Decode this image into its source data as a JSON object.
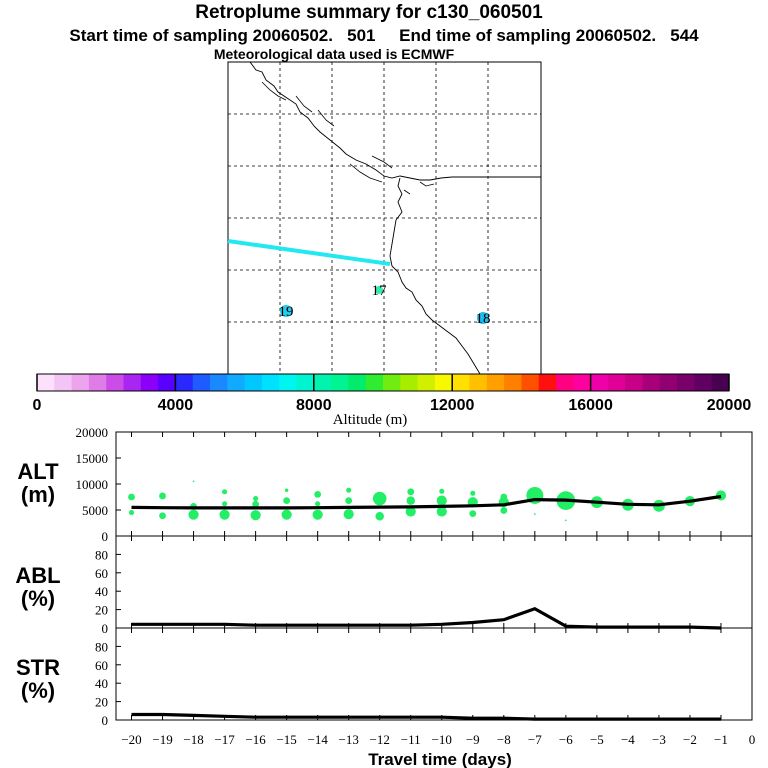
{
  "header": {
    "title": "Retroplume summary for c130_060501",
    "subtitle": "Start time of sampling 20060502.   501     End time of sampling 20060502.   544",
    "met_note": "Meteorological data used is ECMWF"
  },
  "colors": {
    "plume_track": "#22e8f0",
    "line": "#000000",
    "map_line": "#000000",
    "dot": "#22ee66"
  },
  "chart_data": [
    {
      "id": "map",
      "type": "map",
      "title": "",
      "markers": [
        {
          "label": "17",
          "lon_index": 0.48,
          "color": "#33eeaa"
        },
        {
          "label": "19",
          "lon_index": 0.18,
          "color": "#22ccee"
        },
        {
          "label": "18",
          "lon_index": 0.82,
          "color": "#22bbee"
        }
      ]
    },
    {
      "id": "colorbar",
      "type": "colorbar",
      "xlabel": "Altitude (m)",
      "tick_labels": [
        "0",
        "4000",
        "8000",
        "12000",
        "16000",
        "20000"
      ],
      "range": [
        0,
        20000
      ],
      "colors": [
        "#fce0fc",
        "#f4c4f4",
        "#eca4ec",
        "#e07ce8",
        "#cc4ce8",
        "#a826f0",
        "#8a00f8",
        "#5a00ff",
        "#2828ff",
        "#1e5cff",
        "#1a88ff",
        "#10aaff",
        "#00c8ff",
        "#00e0ff",
        "#00f4f0",
        "#00f4d0",
        "#00f4b0",
        "#00f490",
        "#00ec6c",
        "#30ec30",
        "#70ec10",
        "#a8ec00",
        "#d0f000",
        "#f8f800",
        "#ffe000",
        "#ffc000",
        "#ffa000",
        "#ff8000",
        "#ff5000",
        "#ff1010",
        "#ff0080",
        "#ff00a0",
        "#f000a8",
        "#e00098",
        "#c80088",
        "#a80078",
        "#900070",
        "#780068",
        "#600060",
        "#480050"
      ]
    },
    {
      "id": "alt",
      "type": "line",
      "ylabel": "ALT\n(m)",
      "ylabel_top": "ALT",
      "ylabel_bottom": "(m)",
      "ylim": [
        0,
        20000
      ],
      "yticks": [
        "0",
        "5000",
        "10000",
        "15000",
        "20000"
      ],
      "x": [
        -20,
        -19,
        -18,
        -17,
        -16,
        -15,
        -14,
        -13,
        -12,
        -11,
        -10,
        -9,
        -8,
        -7,
        -6,
        -5,
        -4,
        -3,
        -2,
        -1
      ],
      "values": [
        5500,
        5450,
        5400,
        5400,
        5400,
        5400,
        5450,
        5500,
        5550,
        5600,
        5700,
        5800,
        6000,
        7000,
        6900,
        6500,
        6100,
        6000,
        6700,
        7600
      ],
      "scatter": [
        {
          "x": -20,
          "y": 7500,
          "s": 4
        },
        {
          "x": -20,
          "y": 4500,
          "s": 3
        },
        {
          "x": -19,
          "y": 7700,
          "s": 4
        },
        {
          "x": -19,
          "y": 3900,
          "s": 4
        },
        {
          "x": -18,
          "y": 5700,
          "s": 4
        },
        {
          "x": -18,
          "y": 4100,
          "s": 6
        },
        {
          "x": -18,
          "y": 10500,
          "s": 1
        },
        {
          "x": -17,
          "y": 8500,
          "s": 3
        },
        {
          "x": -17,
          "y": 6200,
          "s": 3
        },
        {
          "x": -17,
          "y": 4100,
          "s": 6
        },
        {
          "x": -16,
          "y": 7200,
          "s": 3
        },
        {
          "x": -16,
          "y": 6100,
          "s": 4
        },
        {
          "x": -16,
          "y": 4000,
          "s": 6
        },
        {
          "x": -15,
          "y": 8800,
          "s": 2
        },
        {
          "x": -15,
          "y": 6800,
          "s": 4
        },
        {
          "x": -15,
          "y": 4100,
          "s": 6
        },
        {
          "x": -14,
          "y": 8000,
          "s": 4
        },
        {
          "x": -14,
          "y": 6200,
          "s": 3
        },
        {
          "x": -14,
          "y": 4100,
          "s": 6
        },
        {
          "x": -13,
          "y": 8800,
          "s": 3
        },
        {
          "x": -13,
          "y": 6800,
          "s": 4
        },
        {
          "x": -13,
          "y": 4200,
          "s": 6
        },
        {
          "x": -12,
          "y": 7200,
          "s": 8
        },
        {
          "x": -12,
          "y": 3800,
          "s": 5
        },
        {
          "x": -11,
          "y": 8500,
          "s": 4
        },
        {
          "x": -11,
          "y": 6800,
          "s": 5
        },
        {
          "x": -11,
          "y": 4700,
          "s": 6
        },
        {
          "x": -10,
          "y": 8600,
          "s": 3
        },
        {
          "x": -10,
          "y": 6800,
          "s": 6
        },
        {
          "x": -10,
          "y": 4700,
          "s": 6
        },
        {
          "x": -9,
          "y": 8200,
          "s": 3
        },
        {
          "x": -9,
          "y": 6500,
          "s": 6
        },
        {
          "x": -9,
          "y": 4300,
          "s": 4
        },
        {
          "x": -8,
          "y": 7500,
          "s": 4
        },
        {
          "x": -8,
          "y": 6500,
          "s": 6
        },
        {
          "x": -8,
          "y": 4900,
          "s": 4
        },
        {
          "x": -7,
          "y": 7800,
          "s": 10
        },
        {
          "x": -7,
          "y": 4200,
          "s": 1
        },
        {
          "x": -6,
          "y": 6800,
          "s": 11
        },
        {
          "x": -6,
          "y": 3000,
          "s": 1
        },
        {
          "x": -5,
          "y": 6500,
          "s": 7
        },
        {
          "x": -4,
          "y": 6000,
          "s": 7
        },
        {
          "x": -3,
          "y": 5800,
          "s": 7
        },
        {
          "x": -2,
          "y": 6700,
          "s": 6
        },
        {
          "x": -1,
          "y": 7800,
          "s": 6
        }
      ]
    },
    {
      "id": "abl",
      "type": "line",
      "ylabel_top": "ABL",
      "ylabel_bottom": "(%)",
      "ylim": [
        0,
        100
      ],
      "yticks": [
        "0",
        "20",
        "40",
        "60",
        "80"
      ],
      "x": [
        -20,
        -19,
        -18,
        -17,
        -16,
        -15,
        -14,
        -13,
        -12,
        -11,
        -10,
        -9,
        -8,
        -7,
        -6,
        -5,
        -4,
        -3,
        -2,
        -1
      ],
      "values": [
        4,
        4,
        4,
        4,
        3,
        3,
        3,
        3,
        3,
        3,
        4,
        6,
        9,
        21,
        2,
        1,
        1,
        1,
        1,
        0
      ]
    },
    {
      "id": "str",
      "type": "line",
      "ylabel_top": "STR",
      "ylabel_bottom": "(%)",
      "ylim": [
        0,
        100
      ],
      "yticks": [
        "0",
        "20",
        "40",
        "60",
        "80"
      ],
      "x": [
        -20,
        -19,
        -18,
        -17,
        -16,
        -15,
        -14,
        -13,
        -12,
        -11,
        -10,
        -9,
        -8,
        -7,
        -6,
        -5,
        -4,
        -3,
        -2,
        -1
      ],
      "values": [
        6,
        6,
        5,
        4,
        3,
        3,
        3,
        3,
        3,
        3,
        3,
        2,
        2,
        1,
        1,
        1,
        1,
        1,
        1,
        1
      ],
      "xlabel": "Travel time (days)",
      "xticks": [
        "−20",
        "−19",
        "−18",
        "−17",
        "−16",
        "−15",
        "−14",
        "−13",
        "−12",
        "−11",
        "−10",
        "−9",
        "−8",
        "−7",
        "−6",
        "−5",
        "−4",
        "−3",
        "−2",
        "−1",
        "0"
      ]
    }
  ]
}
